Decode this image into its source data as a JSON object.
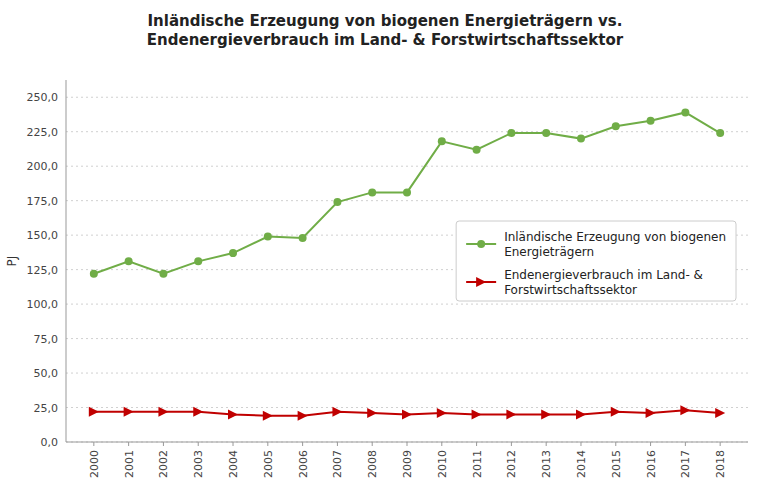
{
  "chart_data": {
    "type": "line",
    "title": "Inländische Erzeugung von biogenen Energieträgern vs.\nEndenergieverbrauch im Land- & Forstwirtschaftssektor",
    "y_label": "PJ",
    "x": [
      2000,
      2001,
      2002,
      2003,
      2004,
      2005,
      2006,
      2007,
      2008,
      2009,
      2010,
      2011,
      2012,
      2013,
      2014,
      2015,
      2016,
      2017,
      2018
    ],
    "series": [
      {
        "name": "Inländische Erzeugung von biogenen\nEnergieträgern",
        "color": "#70AD47",
        "marker": "circle",
        "values": [
          122,
          131,
          122,
          131,
          137,
          149,
          148,
          174,
          181,
          181,
          218,
          212,
          224,
          224,
          220,
          229,
          233,
          239,
          224
        ]
      },
      {
        "name": "Endenergieverbrauch im Land- &\nForstwirtschaftssektor",
        "color": "#C00000",
        "marker": "triangle",
        "values": [
          22,
          22,
          22,
          22,
          20,
          19,
          19,
          22,
          21,
          20,
          21,
          20,
          20,
          20,
          20,
          22,
          21,
          23,
          21
        ]
      }
    ],
    "xlim": [
      1999.2,
      2018.8
    ],
    "xticks": [
      2000,
      2001,
      2002,
      2003,
      2004,
      2005,
      2006,
      2007,
      2008,
      2009,
      2010,
      2011,
      2012,
      2013,
      2014,
      2015,
      2016,
      2017,
      2018
    ],
    "ylim": [
      0,
      262.5
    ],
    "yticks": [
      {
        "value": 0,
        "label": "0,0"
      },
      {
        "value": 25,
        "label": "25,0"
      },
      {
        "value": 50,
        "label": "50,0"
      },
      {
        "value": 75,
        "label": "75,0"
      },
      {
        "value": 100,
        "label": "100,0"
      },
      {
        "value": 125,
        "label": "125,0"
      },
      {
        "value": 150,
        "label": "150,0"
      },
      {
        "value": 175,
        "label": "175,0"
      },
      {
        "value": 200,
        "label": "200,0"
      },
      {
        "value": 225,
        "label": "225,0"
      },
      {
        "value": 250,
        "label": "250,0"
      }
    ],
    "grid": true,
    "legend": "right"
  }
}
